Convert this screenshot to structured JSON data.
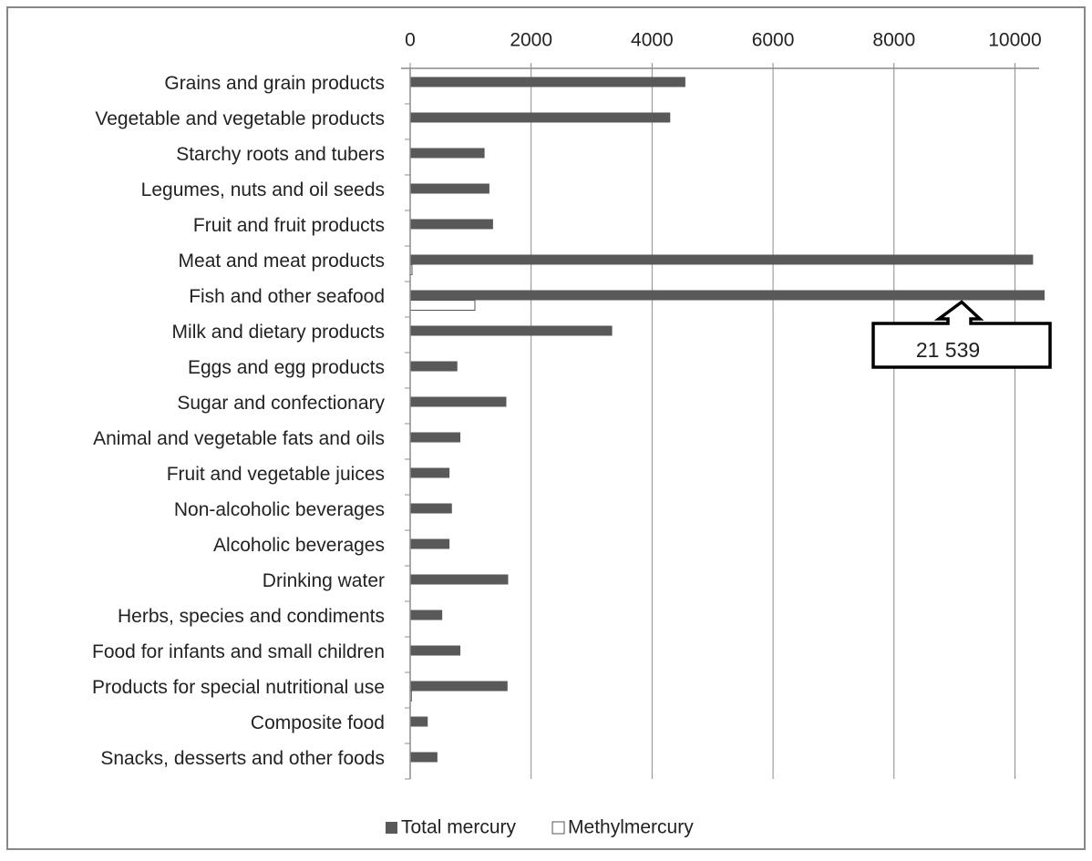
{
  "chart_data": {
    "type": "bar",
    "orientation": "horizontal",
    "categories": [
      "Grains and grain products",
      "Vegetable and vegetable products",
      "Starchy roots and tubers",
      "Legumes, nuts and oil seeds",
      "Fruit and fruit products",
      "Meat and meat products",
      "Fish and other seafood",
      "Milk and dietary products",
      "Eggs and egg products",
      "Sugar and confectionary",
      "Animal and vegetable fats and oils",
      "Fruit and vegetable juices",
      "Non-alcoholic beverages",
      "Alcoholic beverages",
      "Drinking water",
      "Herbs, species and condiments",
      "Food for infants and small children",
      "Products for special nutritional use",
      "Composite food",
      "Snacks, desserts and other foods"
    ],
    "series": [
      {
        "name": "Total mercury",
        "color": "#595959",
        "values": [
          4550,
          4300,
          1230,
          1310,
          1370,
          10300,
          21539,
          3340,
          780,
          1590,
          830,
          650,
          690,
          650,
          1620,
          530,
          830,
          1610,
          290,
          450
        ],
        "value_labels": [
          null,
          null,
          null,
          null,
          null,
          null,
          "21 539",
          null,
          null,
          null,
          null,
          null,
          null,
          null,
          null,
          null,
          null,
          null,
          null,
          null
        ]
      },
      {
        "name": "Methylmercury",
        "color": "#ffffff",
        "values": [
          0,
          0,
          0,
          0,
          0,
          30,
          1070,
          0,
          0,
          0,
          0,
          0,
          0,
          0,
          0,
          0,
          0,
          20,
          0,
          0
        ]
      }
    ],
    "xlim": [
      0,
      10400
    ],
    "xticks": [
      0,
      2000,
      4000,
      6000,
      8000,
      10000
    ],
    "grid": true,
    "legend": "bottom"
  }
}
